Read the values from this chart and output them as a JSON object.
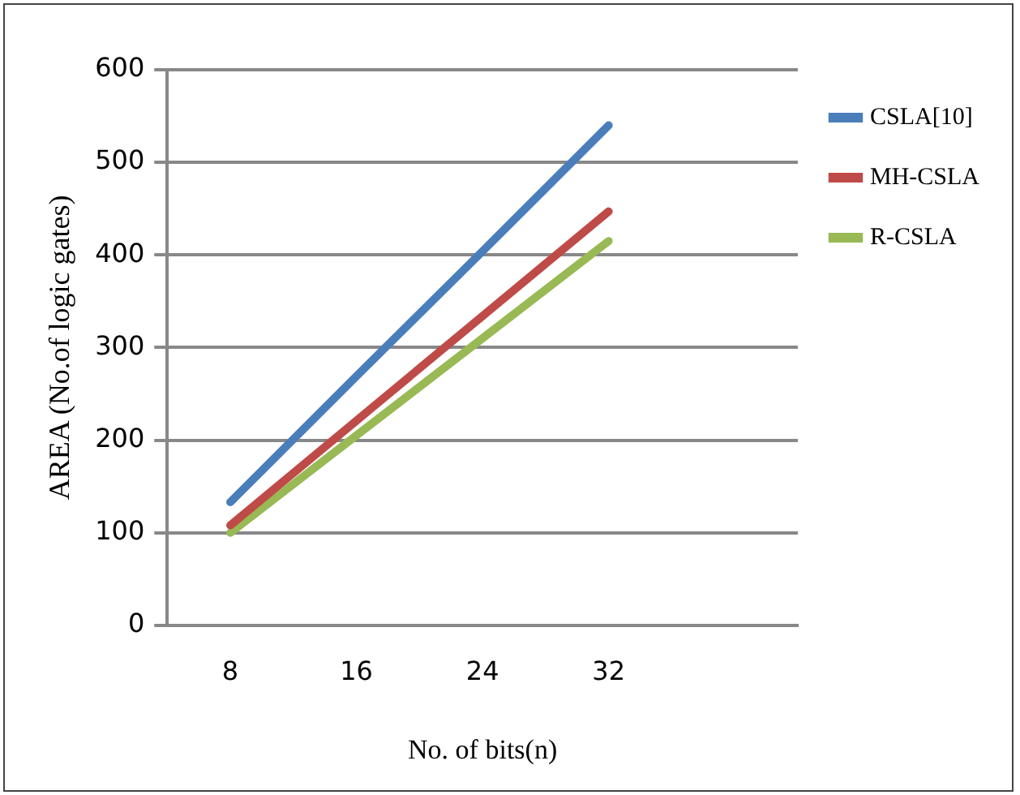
{
  "chart_data": {
    "type": "line",
    "xlabel": "No. of bits(n)",
    "ylabel": "AREA (No.of logic gates)",
    "categories": [
      "8",
      "16",
      "24",
      "32",
      null
    ],
    "series": [
      {
        "name": "CSLA[10]",
        "color": "#4a7ebb",
        "values": [
          133,
          269,
          404,
          540,
          null
        ]
      },
      {
        "name": "MH-CSLA",
        "color": "#be4b48",
        "values": [
          108,
          221,
          334,
          447,
          null
        ]
      },
      {
        "name": "R-CSLA",
        "color": "#98b954",
        "values": [
          100,
          205,
          310,
          415,
          null
        ]
      }
    ],
    "ylim": [
      0,
      600
    ],
    "yticks": [
      0,
      100,
      200,
      300,
      400,
      500,
      600
    ],
    "grid": "y",
    "legend": "right",
    "marker": "none",
    "line_style": "solid"
  }
}
